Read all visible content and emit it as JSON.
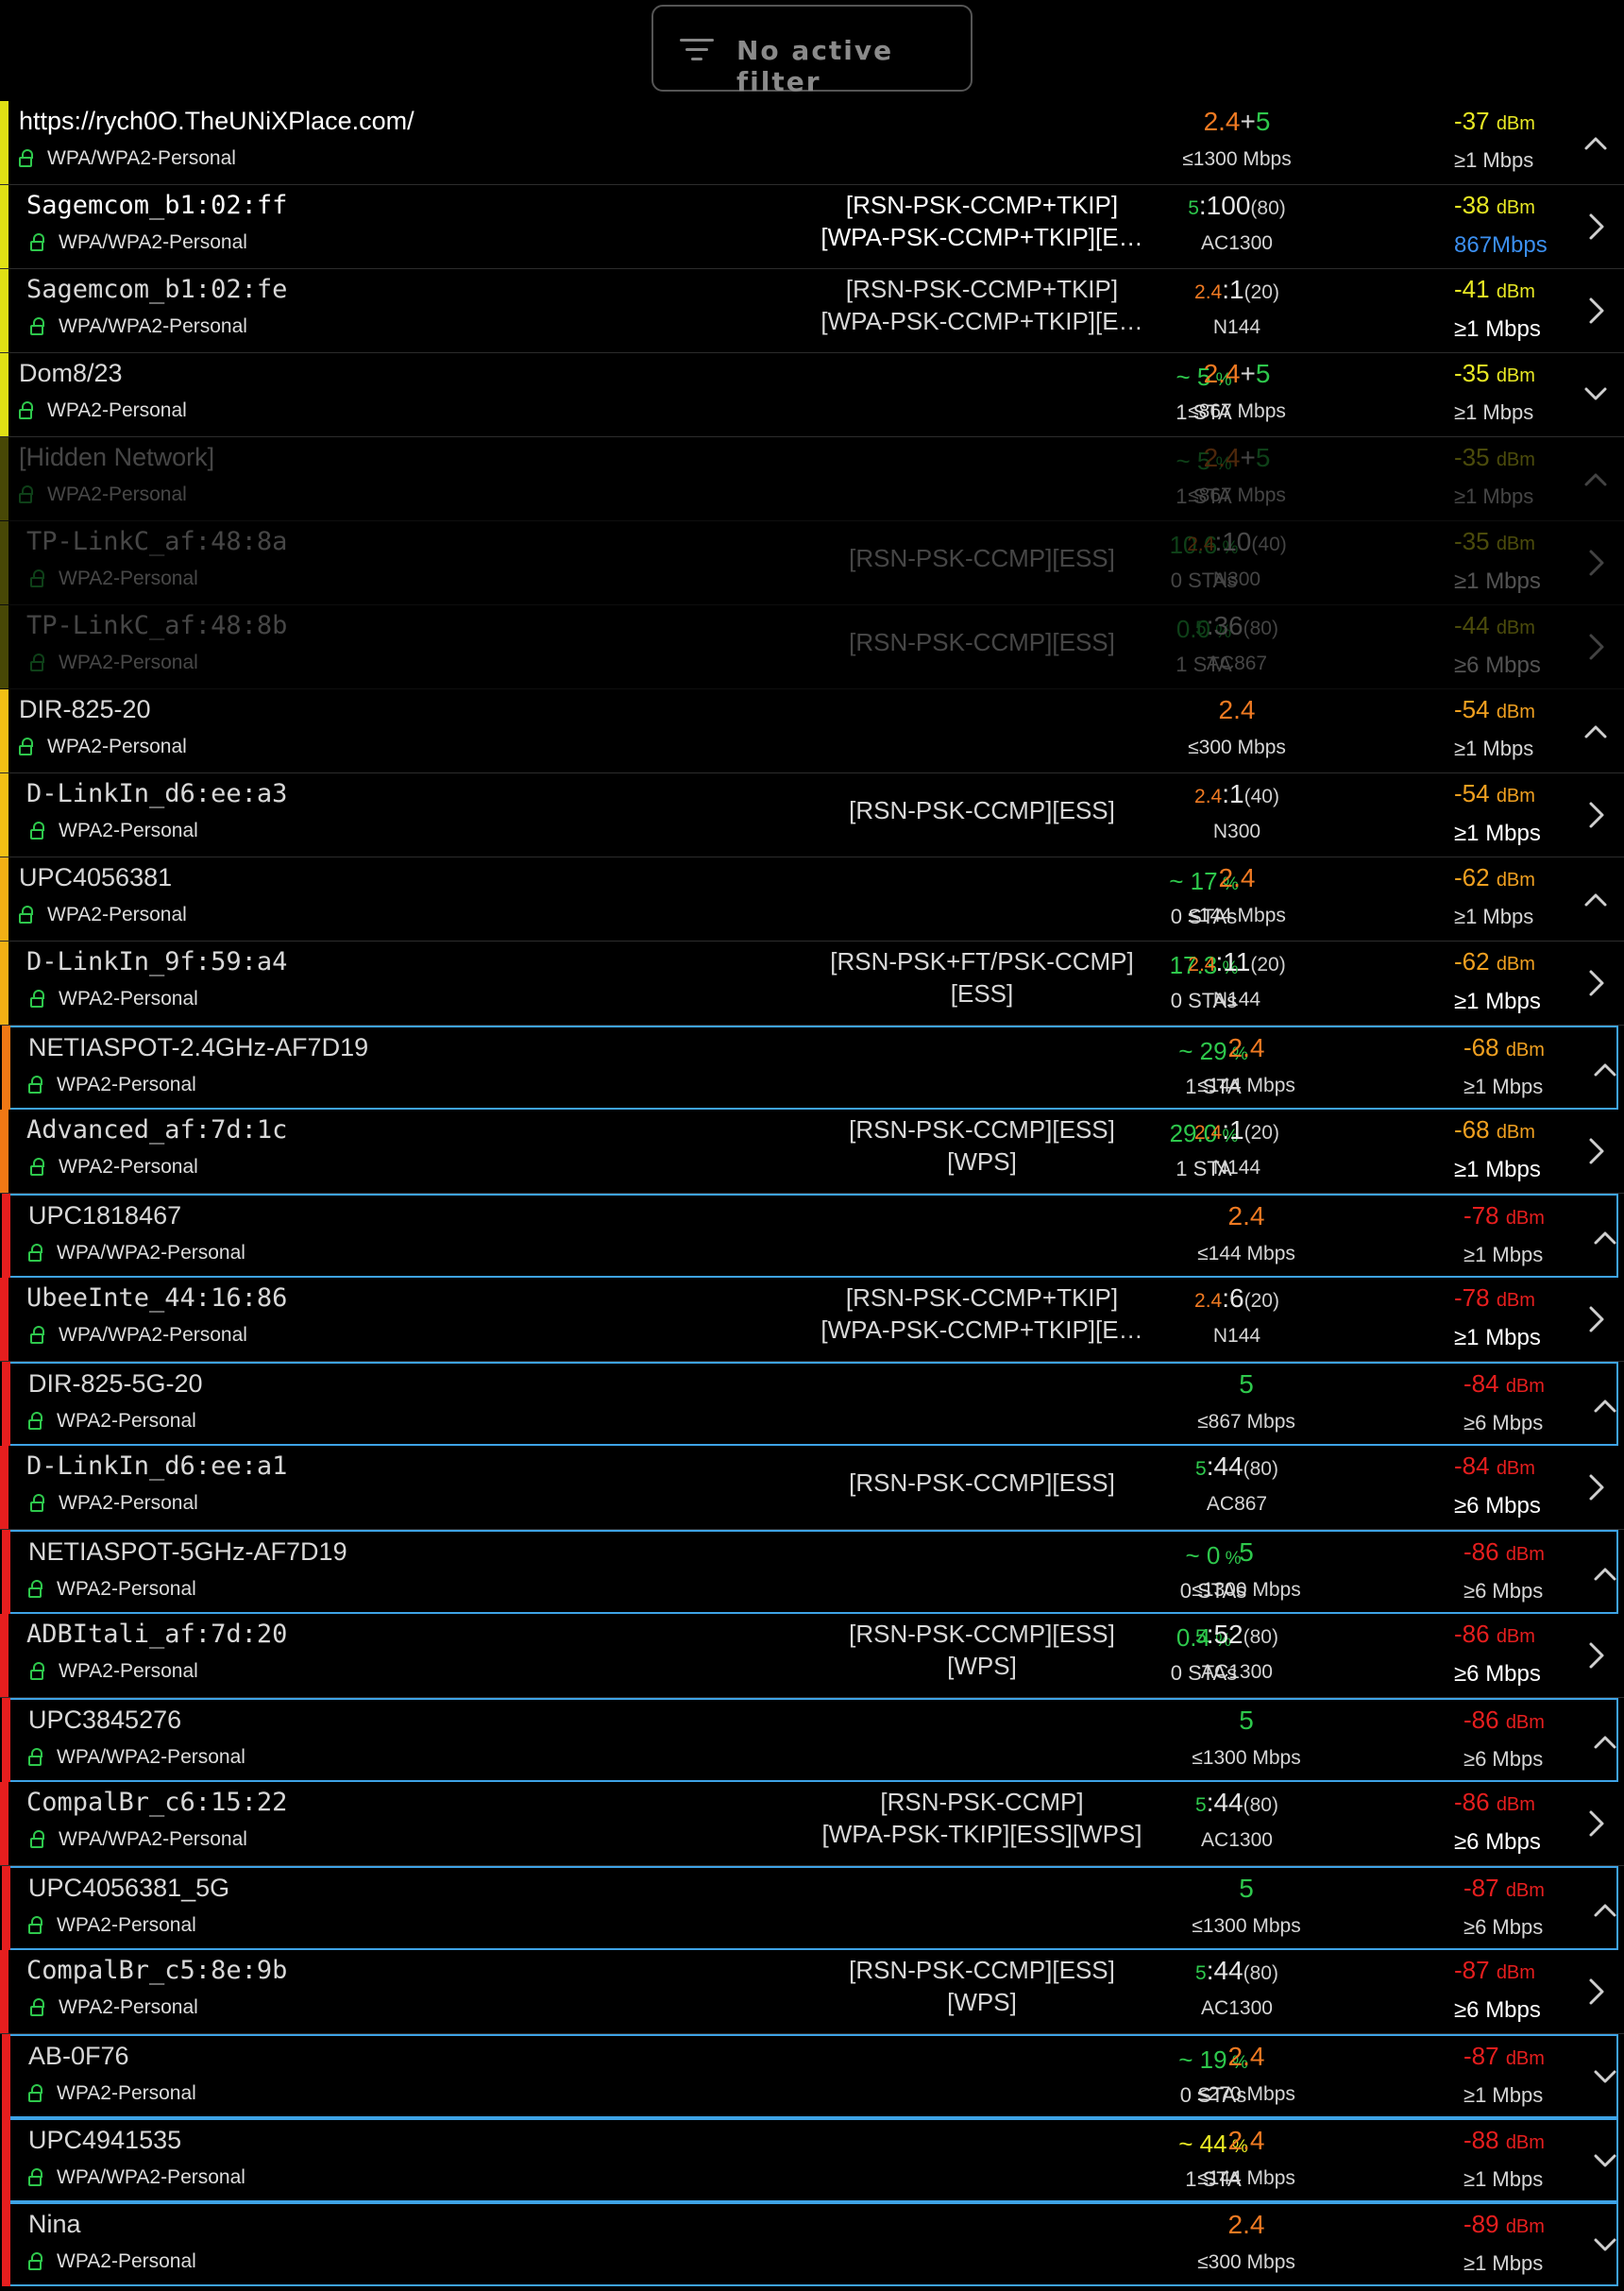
{
  "filter": {
    "label": "No active filter",
    "icon": "filter-list-icon"
  },
  "colors": {
    "band24": "#f07a22",
    "band5": "#2ec84c",
    "highlight": "#3ea3e6",
    "lock": "#2ec84c"
  },
  "rows": [
    {
      "ssid": "https://rych0O.TheUNiXPlace.com/",
      "security": "WPA/WPA2-Personal",
      "caps": "",
      "util": "",
      "sta": "",
      "channel": "2.4+5",
      "rate": "≤1300 Mbps",
      "signal": "-37",
      "unit": "dBm",
      "minrate": "≥1 Mbps",
      "arrow": "up",
      "bar": "#e0e014"
    },
    {
      "ssid": "Sagemcom_b1:02:ff",
      "security": "WPA/WPA2-Personal",
      "caps": "[RSN-PSK-CCMP+TKIP]",
      "caps2": "[WPA-PSK-CCMP+TKIP][E…",
      "util": "",
      "sta": "",
      "channel": "5",
      "chnum": ":100",
      "width": "(80)",
      "rate": "AC1300",
      "signal": "-38",
      "unit": "dBm",
      "minrate": "867Mbps",
      "arrow": "right",
      "bar": "#e0e014"
    },
    {
      "ssid": "Sagemcom_b1:02:fe",
      "security": "WPA/WPA2-Personal",
      "caps": "[RSN-PSK-CCMP+TKIP]",
      "caps2": "[WPA-PSK-CCMP+TKIP][E…",
      "util": "",
      "sta": "",
      "channel": "2.4",
      "chnum": ":1",
      "width": "(20)",
      "rate": "N144",
      "signal": "-41",
      "unit": "dBm",
      "minrate": "≥1 Mbps",
      "arrow": "right",
      "bar": "#e0e014"
    },
    {
      "ssid": "Dom8/23",
      "security": "WPA2-Personal",
      "caps": "",
      "util": "~ 5",
      "sta": "1 STA",
      "channel": "2.4+5",
      "rate": "≤867 Mbps",
      "signal": "-35",
      "unit": "dBm",
      "minrate": "≥1 Mbps",
      "arrow": "down",
      "bar": "#e0e014"
    },
    {
      "ssid": "[Hidden Network]",
      "security": "WPA2-Personal",
      "caps": "",
      "util": "~ 5",
      "sta": "1 STA",
      "channel": "2.4+5",
      "rate": "≤867 Mbps",
      "signal": "-35",
      "unit": "dBm",
      "minrate": "≥1 Mbps",
      "arrow": "up",
      "bar": "#e0e014"
    },
    {
      "ssid": "TP-LinkC_af:48:8a",
      "security": "WPA2-Personal",
      "caps": "[RSN-PSK-CCMP][ESS]",
      "util": "10.6",
      "sta": "0 STAs",
      "channel": "2.4",
      "chnum": ":10",
      "width": "(40)",
      "rate": "N300",
      "signal": "-35",
      "unit": "dBm",
      "minrate": "≥1 Mbps",
      "arrow": "right",
      "bar": "#e0e014"
    },
    {
      "ssid": "TP-LinkC_af:48:8b",
      "security": "WPA2-Personal",
      "caps": "[RSN-PSK-CCMP][ESS]",
      "util": "0.0",
      "sta": "1 STA",
      "channel": "5",
      "chnum": ":36",
      "width": "(80)",
      "rate": "AC867",
      "signal": "-44",
      "unit": "dBm",
      "minrate": "≥6 Mbps",
      "arrow": "right",
      "bar": "#e0e014"
    },
    {
      "ssid": "DIR-825-20",
      "security": "WPA2-Personal",
      "caps": "",
      "util": "",
      "sta": "",
      "channel": "2.4",
      "rate": "≤300 Mbps",
      "signal": "-54",
      "unit": "dBm",
      "minrate": "≥1 Mbps",
      "arrow": "up",
      "bar": "#f2c014"
    },
    {
      "ssid": "D-LinkIn_d6:ee:a3",
      "security": "WPA2-Personal",
      "caps": "[RSN-PSK-CCMP][ESS]",
      "util": "",
      "sta": "",
      "channel": "2.4",
      "chnum": ":1",
      "width": "(40)",
      "rate": "N300",
      "signal": "-54",
      "unit": "dBm",
      "minrate": "≥1 Mbps",
      "arrow": "right",
      "bar": "#f2c014"
    },
    {
      "ssid": "UPC4056381",
      "security": "WPA2-Personal",
      "caps": "",
      "util": "~ 17",
      "sta": "0 STAs",
      "channel": "2.4",
      "rate": "≤144 Mbps",
      "signal": "-62",
      "unit": "dBm",
      "minrate": "≥1 Mbps",
      "arrow": "up",
      "bar": "#f2b014"
    },
    {
      "ssid": "D-LinkIn_9f:59:a4",
      "security": "WPA2-Personal",
      "caps": "[RSN-PSK+FT/PSK-CCMP]",
      "caps2": "[ESS]",
      "util": "17.3",
      "sta": "0 STAs",
      "channel": "2.4",
      "chnum": ":11",
      "width": "(20)",
      "rate": "N144",
      "signal": "-62",
      "unit": "dBm",
      "minrate": "≥1 Mbps",
      "arrow": "right",
      "bar": "#f2b014"
    },
    {
      "ssid": "NETIASPOT-2.4GHz-AF7D19",
      "security": "WPA2-Personal",
      "caps": "",
      "util": "~ 29",
      "sta": "1 STA",
      "channel": "2.4",
      "rate": "≤144 Mbps",
      "signal": "-68",
      "unit": "dBm",
      "minrate": "≥1 Mbps",
      "arrow": "up",
      "bar": "#f07814"
    },
    {
      "ssid": "Advanced_af:7d:1c",
      "security": "WPA2-Personal",
      "caps": "[RSN-PSK-CCMP][ESS]",
      "caps2": "[WPS]",
      "util": "29.0",
      "sta": "1 STA",
      "channel": "2.4",
      "chnum": ":1",
      "width": "(20)",
      "rate": "N144",
      "signal": "-68",
      "unit": "dBm",
      "minrate": "≥1 Mbps",
      "arrow": "right",
      "bar": "#f07814"
    },
    {
      "ssid": "UPC1818467",
      "security": "WPA/WPA2-Personal",
      "caps": "",
      "util": "",
      "sta": "",
      "channel": "2.4",
      "rate": "≤144 Mbps",
      "signal": "-78",
      "unit": "dBm",
      "minrate": "≥1 Mbps",
      "arrow": "up",
      "bar": "#e61e1e"
    },
    {
      "ssid": "UbeeInte_44:16:86",
      "security": "WPA/WPA2-Personal",
      "caps": "[RSN-PSK-CCMP+TKIP]",
      "caps2": "[WPA-PSK-CCMP+TKIP][E…",
      "util": "",
      "sta": "",
      "channel": "2.4",
      "chnum": ":6",
      "width": "(20)",
      "rate": "N144",
      "signal": "-78",
      "unit": "dBm",
      "minrate": "≥1 Mbps",
      "arrow": "right",
      "bar": "#e61e1e"
    },
    {
      "ssid": "DIR-825-5G-20",
      "security": "WPA2-Personal",
      "caps": "",
      "util": "",
      "sta": "",
      "channel": "5",
      "rate": "≤867 Mbps",
      "signal": "-84",
      "unit": "dBm",
      "minrate": "≥6 Mbps",
      "arrow": "up",
      "bar": "#e61e1e"
    },
    {
      "ssid": "D-LinkIn_d6:ee:a1",
      "security": "WPA2-Personal",
      "caps": "[RSN-PSK-CCMP][ESS]",
      "util": "",
      "sta": "",
      "channel": "5",
      "chnum": ":44",
      "width": "(80)",
      "rate": "AC867",
      "signal": "-84",
      "unit": "dBm",
      "minrate": "≥6 Mbps",
      "arrow": "right",
      "bar": "#e61e1e"
    },
    {
      "ssid": "NETIASPOT-5GHz-AF7D19",
      "security": "WPA2-Personal",
      "caps": "",
      "util": "~ 0",
      "sta": "0 STAs",
      "channel": "5",
      "rate": "≤1300 Mbps",
      "signal": "-86",
      "unit": "dBm",
      "minrate": "≥6 Mbps",
      "arrow": "up",
      "bar": "#e61e1e"
    },
    {
      "ssid": "ADBItali_af:7d:20",
      "security": "WPA2-Personal",
      "caps": "[RSN-PSK-CCMP][ESS]",
      "caps2": "[WPS]",
      "util": "0.4",
      "sta": "0 STAs",
      "channel": "5",
      "chnum": ":52",
      "width": "(80)",
      "rate": "AC1300",
      "signal": "-86",
      "unit": "dBm",
      "minrate": "≥6 Mbps",
      "arrow": "right",
      "bar": "#e61e1e"
    },
    {
      "ssid": "UPC3845276",
      "security": "WPA/WPA2-Personal",
      "caps": "",
      "util": "",
      "sta": "",
      "channel": "5",
      "rate": "≤1300 Mbps",
      "signal": "-86",
      "unit": "dBm",
      "minrate": "≥6 Mbps",
      "arrow": "up",
      "bar": "#e61e1e"
    },
    {
      "ssid": "CompalBr_c6:15:22",
      "security": "WPA/WPA2-Personal",
      "caps": "[RSN-PSK-CCMP]",
      "caps2": "[WPA-PSK-TKIP][ESS][WPS]",
      "util": "",
      "sta": "",
      "channel": "5",
      "chnum": ":44",
      "width": "(80)",
      "rate": "AC1300",
      "signal": "-86",
      "unit": "dBm",
      "minrate": "≥6 Mbps",
      "arrow": "right",
      "bar": "#e61e1e"
    },
    {
      "ssid": "UPC4056381_5G",
      "security": "WPA2-Personal",
      "caps": "",
      "util": "",
      "sta": "",
      "channel": "5",
      "rate": "≤1300 Mbps",
      "signal": "-87",
      "unit": "dBm",
      "minrate": "≥6 Mbps",
      "arrow": "up",
      "bar": "#e61e1e"
    },
    {
      "ssid": "CompalBr_c5:8e:9b",
      "security": "WPA2-Personal",
      "caps": "[RSN-PSK-CCMP][ESS]",
      "caps2": "[WPS]",
      "util": "",
      "sta": "",
      "channel": "5",
      "chnum": ":44",
      "width": "(80)",
      "rate": "AC1300",
      "signal": "-87",
      "unit": "dBm",
      "minrate": "≥6 Mbps",
      "arrow": "right",
      "bar": "#e61e1e"
    },
    {
      "ssid": "AB-0F76",
      "security": "WPA2-Personal",
      "caps": "",
      "util": "~ 19",
      "sta": "0 STAs",
      "channel": "2.4",
      "rate": "≤270 Mbps",
      "signal": "-87",
      "unit": "dBm",
      "minrate": "≥1 Mbps",
      "arrow": "down",
      "bar": "#e61e1e"
    },
    {
      "ssid": "UPC4941535",
      "security": "WPA/WPA2-Personal",
      "caps": "",
      "util": "~ 44",
      "sta": "1 STA",
      "channel": "2.4",
      "rate": "≤144 Mbps",
      "signal": "-88",
      "unit": "dBm",
      "minrate": "≥1 Mbps",
      "arrow": "down",
      "bar": "#e61e1e"
    },
    {
      "ssid": "Nina",
      "security": "WPA2-Personal",
      "caps": "",
      "util": "",
      "sta": "",
      "channel": "2.4",
      "rate": "≤300 Mbps",
      "signal": "-89",
      "unit": "dBm",
      "minrate": "≥1 Mbps",
      "arrow": "down",
      "bar": "#e61e1e"
    }
  ]
}
